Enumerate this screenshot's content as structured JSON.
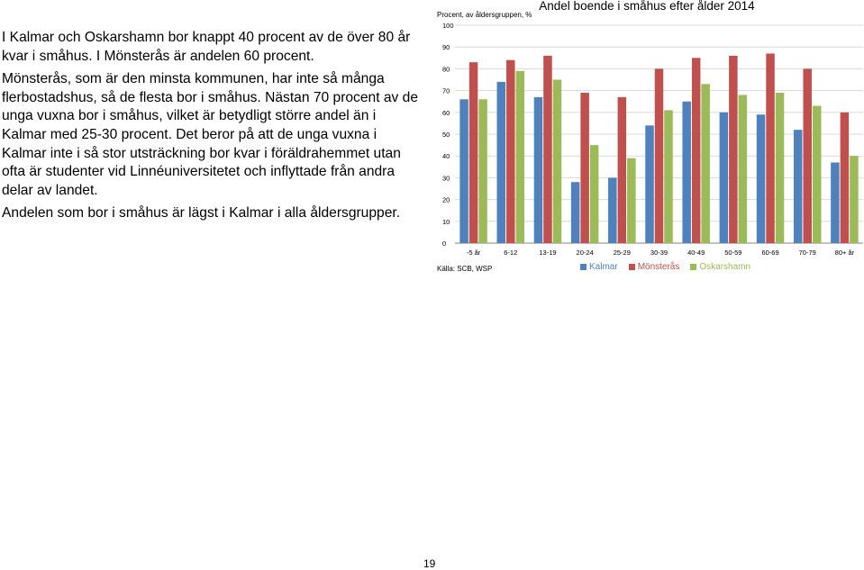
{
  "text": {
    "paragraphs": [
      "I Kalmar och Oskarshamn bor knappt 40 procent av de över 80 år kvar i småhus. I Mönsterås är andelen 60 procent.",
      "Mönsterås, som är den minsta kommunen, har inte så många flerbostadshus, så de flesta bor i småhus. Nästan 70 procent av de unga vuxna bor i småhus, vilket är betydligt större andel än i Kalmar med 25-30 procent. Det beror på att de unga vuxna i Kalmar inte i så stor utsträckning bor kvar i föräldrahemmet utan ofta är studenter vid Linnéuniversitetet och inflyttade från andra delar av landet.",
      "Andelen som bor i småhus är lägst i Kalmar i alla åldersgrupper."
    ]
  },
  "page_number": "19",
  "chart_data": {
    "type": "bar",
    "title": "Andel boende i småhus efter ålder 2014",
    "ylabel": "Procent, av åldersgruppen, %",
    "source": "Källa: SCB, WSP",
    "ylim": [
      0,
      100
    ],
    "yticks": [
      0,
      10,
      20,
      30,
      40,
      50,
      60,
      70,
      80,
      90,
      100
    ],
    "grid": true,
    "legend_position": "bottom",
    "categories": [
      "-5 år",
      "6-12",
      "13-19",
      "20-24",
      "25-29",
      "30-39",
      "40-49",
      "50-59",
      "60-69",
      "70-79",
      "80+ år"
    ],
    "series": [
      {
        "name": "Kalmar",
        "color": "#4f81bd",
        "values": [
          66,
          74,
          67,
          28,
          30,
          54,
          65,
          60,
          59,
          52,
          37
        ]
      },
      {
        "name": "Mönsterås",
        "color": "#c0504d",
        "values": [
          83,
          84,
          86,
          69,
          67,
          80,
          85,
          86,
          87,
          80,
          60
        ]
      },
      {
        "name": "Oskarshamn",
        "color": "#9bbb59",
        "values": [
          66,
          79,
          75,
          45,
          39,
          61,
          73,
          68,
          69,
          63,
          40
        ]
      }
    ]
  }
}
